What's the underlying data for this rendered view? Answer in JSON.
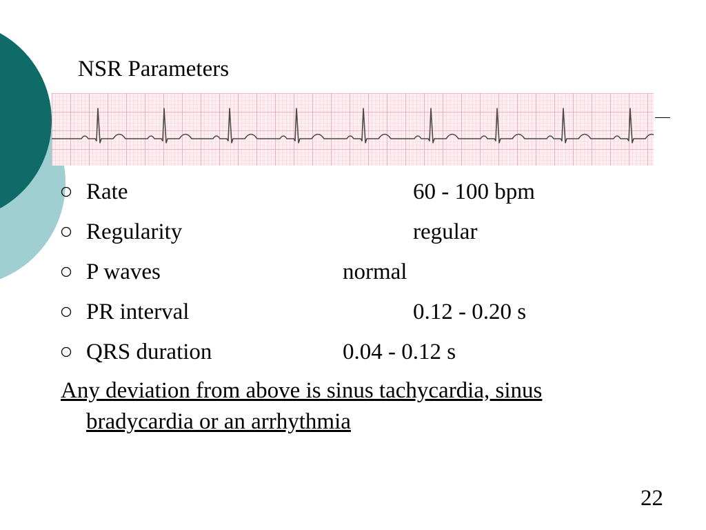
{
  "slide": {
    "title": "NSR Parameters",
    "page_number": "22"
  },
  "parameters": [
    {
      "label": "Rate",
      "value": "60 - 100 bpm"
    },
    {
      "label": "Regularity",
      "value": "regular"
    },
    {
      "label": "P waves",
      "value": "normal"
    },
    {
      "label": "PR interval",
      "value": "0.12 - 0.20 s"
    },
    {
      "label": "QRS duration",
      "value": "0.04 - 0.12 s"
    }
  ],
  "note": {
    "line1": "Any deviation from above is sinus tachycardia, sinus",
    "line2": "bradycardia or an arrhythmia"
  },
  "colors": {
    "deco_dark": "#0e6b68",
    "deco_light": "#9fcfd1",
    "ecg_paper": "#fdeef2",
    "ecg_grid_minor": "#f2b9c9",
    "ecg_grid_major": "#df7f9c",
    "ecg_trace": "#4a4a4a"
  },
  "icons": {
    "bullet": "hollow-circle-icon"
  }
}
